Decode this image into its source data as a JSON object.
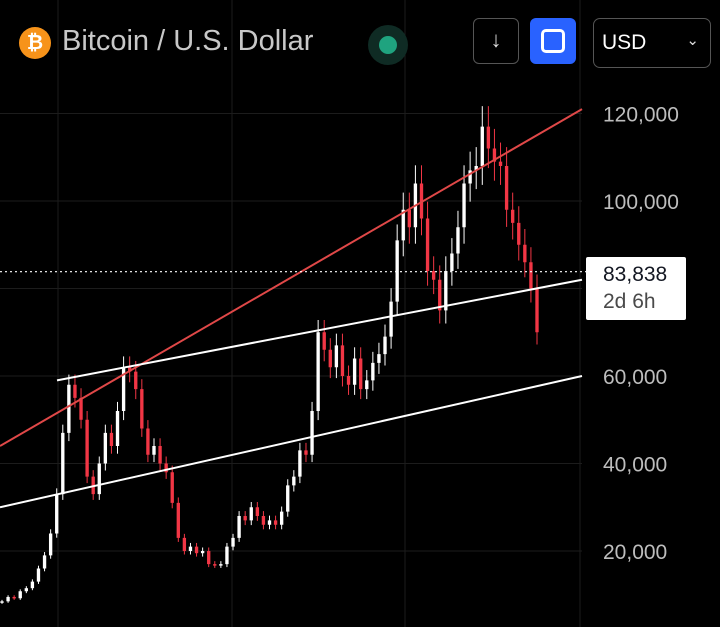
{
  "header": {
    "title": "Bitcoin / U.S. Dollar",
    "logo_icon": "bitcoin-icon",
    "logo_glyph": "₿",
    "status_icon": "market-status-dot",
    "download_icon": "arrow-down-icon",
    "fullscreen_icon": "fullscreen-icon",
    "currency": "USD"
  },
  "price_label": {
    "price": "83,838",
    "time_left": "2d 6h"
  },
  "colors": {
    "background": "#000000",
    "down": "#f23645",
    "up": "#ffffff",
    "accent": "#2962ff",
    "resistance": "#e04848",
    "channel": "#ffffff"
  },
  "chart_data": {
    "type": "candlestick",
    "interval": "weekly",
    "ylim": [
      5000,
      127000
    ],
    "yticks": [
      20000,
      40000,
      60000,
      80000,
      100000,
      120000
    ],
    "ytick_labels": [
      "20,000",
      "40,000",
      "60,000",
      "",
      "100,000",
      "120,000"
    ],
    "current_price": 83838,
    "close_series": [
      8500,
      9500,
      9200,
      10800,
      11500,
      13000,
      16000,
      19000,
      24000,
      33000,
      47000,
      58000,
      55000,
      50000,
      37000,
      33000,
      40000,
      47000,
      44000,
      52000,
      62000,
      61000,
      57000,
      48000,
      42000,
      44000,
      40000,
      38000,
      31000,
      23000,
      20000,
      21000,
      19500,
      20000,
      17000,
      16800,
      17000,
      21000,
      23000,
      28000,
      27000,
      30000,
      28000,
      26000,
      27000,
      26000,
      29000,
      35000,
      37000,
      43000,
      42000,
      52000,
      70000,
      66000,
      62000,
      67000,
      60000,
      58000,
      64000,
      57000,
      59000,
      63000,
      65000,
      69000,
      77000,
      91000,
      98000,
      94000,
      104000,
      96000,
      84000,
      82000,
      75000,
      84000,
      88000,
      94000,
      104000,
      107000,
      108000,
      117000,
      112000,
      109000,
      108000,
      98000,
      95000,
      90000,
      86000,
      80000,
      70000
    ],
    "trendlines": [
      {
        "name": "",
        "color": "#e04848",
        "points": [
          [
            "start",
            44000
          ],
          [
            "end",
            121000
          ]
        ]
      },
      {
        "name": "",
        "color": "#ffffff",
        "points": [
          [
            "2021-04",
            59000
          ],
          [
            "end",
            82000
          ]
        ]
      },
      {
        "name": "",
        "color": "#ffffff",
        "points": [
          [
            "start",
            30000
          ],
          [
            "end",
            60000
          ]
        ]
      }
    ]
  }
}
